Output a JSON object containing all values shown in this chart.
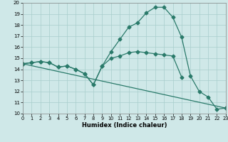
{
  "xlabel": "Humidex (Indice chaleur)",
  "bg_color": "#cfe8e8",
  "grid_color": "#a8cecc",
  "line_color": "#2a7a6a",
  "xlim": [
    0,
    23
  ],
  "ylim": [
    10,
    20
  ],
  "yticks": [
    10,
    11,
    12,
    13,
    14,
    15,
    16,
    17,
    18,
    19,
    20
  ],
  "xticks": [
    0,
    1,
    2,
    3,
    4,
    5,
    6,
    7,
    8,
    9,
    10,
    11,
    12,
    13,
    14,
    15,
    16,
    17,
    18,
    19,
    20,
    21,
    22,
    23
  ],
  "line1_x": [
    0,
    1,
    2,
    3,
    4,
    5,
    6,
    7,
    8,
    9,
    10,
    11,
    12,
    13,
    14,
    15,
    16,
    17,
    18,
    19,
    20,
    21,
    22,
    23
  ],
  "line1_y": [
    14.5,
    14.6,
    14.7,
    14.6,
    14.2,
    14.3,
    14.0,
    13.6,
    12.6,
    14.3,
    15.6,
    16.7,
    17.8,
    18.2,
    19.1,
    19.6,
    19.6,
    18.7,
    16.9,
    13.4,
    12.0,
    11.5,
    10.4,
    10.5
  ],
  "line2_x": [
    0,
    1,
    2,
    3,
    4,
    5,
    6,
    7,
    8,
    9,
    10,
    11,
    12,
    13,
    14,
    15,
    16,
    17,
    18
  ],
  "line2_y": [
    14.5,
    14.6,
    14.7,
    14.6,
    14.2,
    14.3,
    14.0,
    13.6,
    12.6,
    14.3,
    15.0,
    15.2,
    15.5,
    15.6,
    15.5,
    15.4,
    15.3,
    15.2,
    13.3
  ],
  "line3_x": [
    0,
    23
  ],
  "line3_y": [
    14.5,
    10.5
  ]
}
